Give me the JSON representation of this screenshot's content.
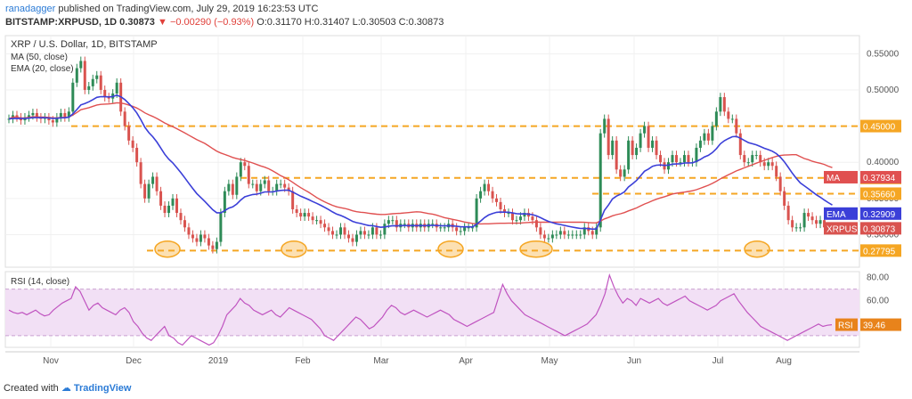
{
  "header": {
    "publisher": "ranadagger",
    "published_text": "published on TradingView.com, July 29, 2019 16:23:53 UTC",
    "symbol": "BITSTAMP:XRPUSD, 1D",
    "last": "0.30873",
    "change": "−0.00290 (−0.93%)",
    "ohlc": "O:0.31170 H:0.31407 L:0.30503 C:0.30873"
  },
  "legend": {
    "title": "XRP / U.S. Dollar, 1D, BITSTAMP",
    "ma": "MA (50, close)",
    "ema": "EMA (20, close)",
    "rsi": "RSI (14, close)"
  },
  "footer": {
    "created": "Created with",
    "brand": "TradingView"
  },
  "colors": {
    "up": "#2e8b57",
    "down": "#d9534f",
    "ma": "#e05050",
    "ema": "#3b3fd8",
    "level": "#f5a623",
    "rsi": "#c054c0",
    "rsi_band": "#f2e0f5"
  },
  "chart_data": [
    {
      "type": "candlestick",
      "title": "XRP / U.S. Dollar, 1D, BITSTAMP",
      "x_ticks": [
        "Nov",
        "Dec",
        "2019",
        "Feb",
        "Mar",
        "Apr",
        "May",
        "Jun",
        "Jul",
        "Aug"
      ],
      "x_range": [
        "2018-10-15",
        "2019-08-04"
      ],
      "ylim": [
        0.255,
        0.575
      ],
      "y_ticks": [
        "0.30000",
        "0.35000",
        "0.40000",
        "0.45000",
        "0.50000",
        "0.55000"
      ],
      "series": [
        {
          "name": "XRPUSD",
          "close": [
            0.46,
            0.465,
            0.462,
            0.458,
            0.462,
            0.465,
            0.468,
            0.462,
            0.46,
            0.462,
            0.458,
            0.455,
            0.462,
            0.468,
            0.462,
            0.47,
            0.51,
            0.53,
            0.54,
            0.5,
            0.505,
            0.515,
            0.52,
            0.5,
            0.49,
            0.488,
            0.495,
            0.51,
            0.47,
            0.45,
            0.43,
            0.42,
            0.4,
            0.37,
            0.35,
            0.37,
            0.38,
            0.36,
            0.34,
            0.33,
            0.34,
            0.35,
            0.33,
            0.32,
            0.31,
            0.3,
            0.295,
            0.29,
            0.3,
            0.295,
            0.285,
            0.28,
            0.29,
            0.33,
            0.36,
            0.37,
            0.355,
            0.38,
            0.4,
            0.395,
            0.37,
            0.37,
            0.36,
            0.37,
            0.375,
            0.36,
            0.36,
            0.37,
            0.37,
            0.365,
            0.36,
            0.335,
            0.33,
            0.325,
            0.33,
            0.325,
            0.32,
            0.32,
            0.315,
            0.31,
            0.305,
            0.3,
            0.3,
            0.31,
            0.3,
            0.295,
            0.29,
            0.3,
            0.305,
            0.3,
            0.3,
            0.31,
            0.3,
            0.3,
            0.315,
            0.32,
            0.32,
            0.31,
            0.315,
            0.315,
            0.31,
            0.315,
            0.31,
            0.315,
            0.31,
            0.315,
            0.315,
            0.31,
            0.31,
            0.31,
            0.315,
            0.31,
            0.305,
            0.305,
            0.31,
            0.31,
            0.31,
            0.35,
            0.36,
            0.37,
            0.36,
            0.35,
            0.345,
            0.335,
            0.33,
            0.33,
            0.32,
            0.32,
            0.325,
            0.33,
            0.325,
            0.32,
            0.31,
            0.3,
            0.295,
            0.295,
            0.3,
            0.3,
            0.305,
            0.3,
            0.3,
            0.3,
            0.3,
            0.3,
            0.31,
            0.305,
            0.3,
            0.31,
            0.44,
            0.46,
            0.41,
            0.43,
            0.39,
            0.38,
            0.39,
            0.43,
            0.41,
            0.42,
            0.44,
            0.45,
            0.42,
            0.43,
            0.41,
            0.4,
            0.39,
            0.4,
            0.41,
            0.4,
            0.4,
            0.41,
            0.4,
            0.4,
            0.42,
            0.43,
            0.44,
            0.43,
            0.45,
            0.47,
            0.49,
            0.47,
            0.46,
            0.46,
            0.44,
            0.41,
            0.4,
            0.4,
            0.41,
            0.41,
            0.4,
            0.395,
            0.4,
            0.395,
            0.38,
            0.36,
            0.34,
            0.32,
            0.31,
            0.31,
            0.31,
            0.33,
            0.325,
            0.32,
            0.315,
            0.32,
            0.31,
            0.311,
            0.3087
          ]
        },
        {
          "name": "MA",
          "label": "MA",
          "last": 0.37934
        },
        {
          "name": "EMA",
          "label": "EMA",
          "last": 0.32909
        }
      ],
      "horizontal_levels": [
        0.45,
        0.37835,
        0.3566,
        0.27795
      ],
      "labels": {
        "price": {
          "tag": "XRPUSD",
          "value": "0.30873"
        },
        "ma": {
          "tag": "MA",
          "value": "0.37934"
        },
        "ema": {
          "tag": "EMA",
          "value": "0.32909"
        },
        "levels": [
          "0.45000",
          "0.37835",
          "0.35660",
          "0.27795"
        ]
      }
    },
    {
      "type": "line",
      "title": "RSI (14, close)",
      "ylim": [
        20,
        85
      ],
      "y_ticks": [
        "60.00",
        "80.00"
      ],
      "bands": [
        30,
        70
      ],
      "series": [
        {
          "name": "RSI",
          "last": 39.46,
          "values": [
            52,
            50,
            49,
            50,
            48,
            50,
            52,
            49,
            47,
            48,
            52,
            55,
            58,
            60,
            62,
            72,
            68,
            60,
            52,
            56,
            58,
            54,
            52,
            50,
            48,
            52,
            54,
            50,
            42,
            38,
            32,
            28,
            26,
            30,
            34,
            38,
            30,
            28,
            24,
            22,
            26,
            30,
            28,
            26,
            24,
            22,
            24,
            30,
            38,
            48,
            52,
            56,
            62,
            58,
            56,
            52,
            50,
            48,
            50,
            52,
            48,
            46,
            50,
            54,
            52,
            50,
            48,
            46,
            44,
            40,
            36,
            30,
            28,
            26,
            30,
            34,
            38,
            42,
            46,
            44,
            40,
            36,
            38,
            42,
            46,
            52,
            56,
            54,
            50,
            48,
            50,
            52,
            50,
            48,
            46,
            48,
            50,
            52,
            50,
            48,
            44,
            42,
            40,
            38,
            40,
            42,
            44,
            46,
            48,
            50,
            62,
            74,
            66,
            60,
            56,
            52,
            48,
            46,
            44,
            42,
            40,
            38,
            36,
            34,
            32,
            30,
            32,
            34,
            36,
            38,
            40,
            44,
            48,
            56,
            66,
            82,
            72,
            64,
            58,
            62,
            60,
            56,
            62,
            60,
            58,
            60,
            62,
            58,
            56,
            58,
            60,
            62,
            64,
            60,
            58,
            56,
            54,
            52,
            54,
            56,
            60,
            62,
            64,
            66,
            60,
            55,
            50,
            46,
            42,
            38,
            36,
            34,
            32,
            30,
            28,
            26,
            28,
            30,
            32,
            34,
            36,
            38,
            40,
            38,
            39,
            39.46
          ]
        }
      ],
      "labels": {
        "rsi": {
          "tag": "RSI",
          "value": "39.46"
        }
      }
    }
  ]
}
